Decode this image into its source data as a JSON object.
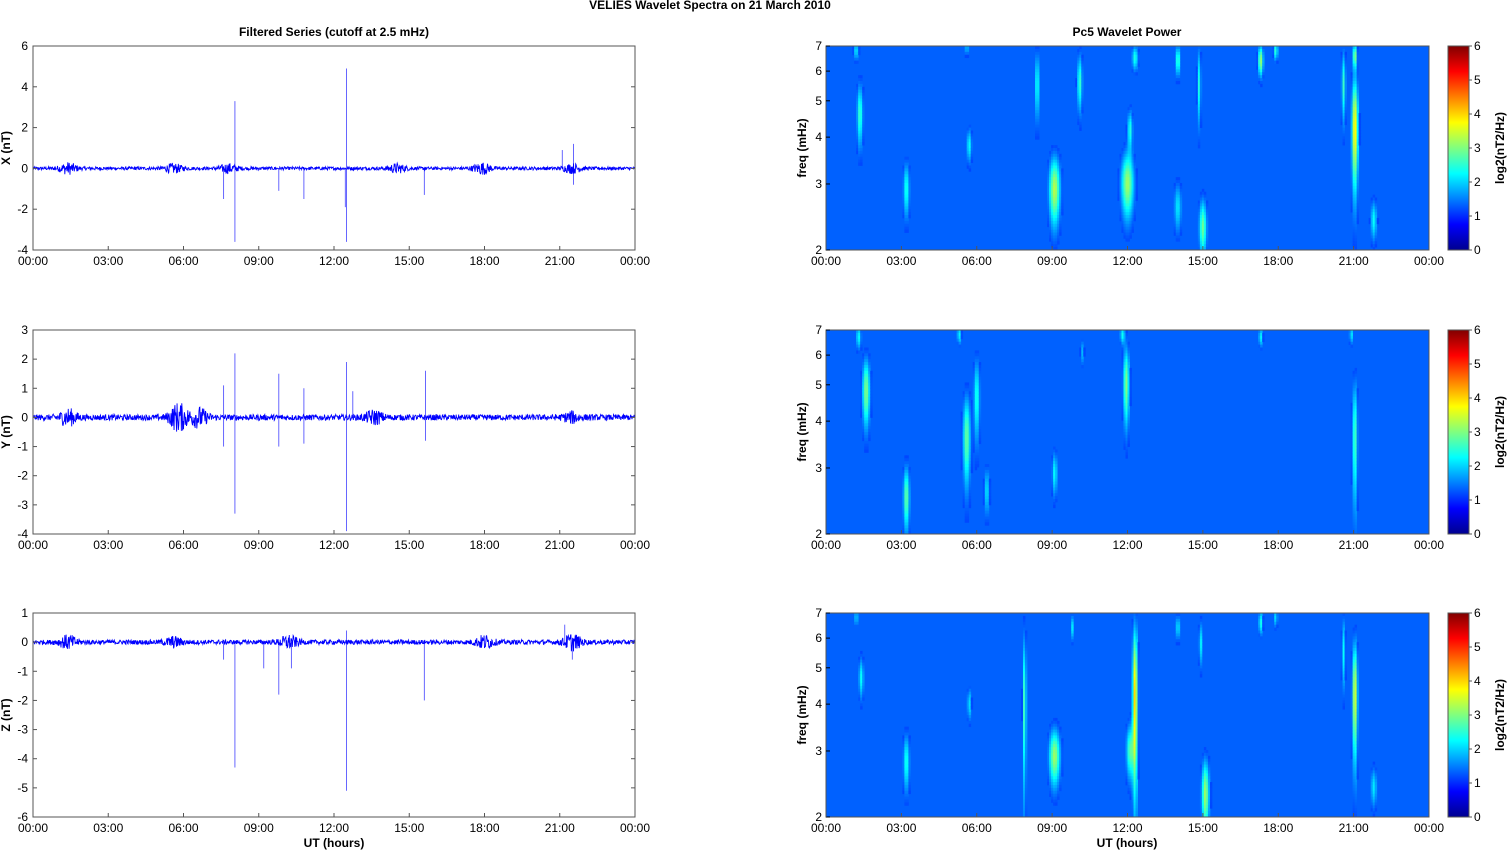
{
  "figure": {
    "title": "VELIES Wavelet Spectra on 21 March      2010",
    "left_column_title": "Filtered Series (cutoff at 2.5 mHz)",
    "right_column_title": "Pc5 Wavelet Power",
    "xlabel": "UT (hours)"
  },
  "chart_data": [
    {
      "type": "line",
      "id": "series-x",
      "ylabel": "X (nT)",
      "ylim": [
        -4,
        6
      ],
      "yticks": [
        "6",
        "4",
        "2",
        "0",
        "-2",
        "-4"
      ],
      "ytick_values": [
        6,
        4,
        2,
        0,
        -2,
        -4
      ],
      "xlim": [
        0,
        24
      ],
      "xtick_labels": [
        "00:00",
        "03:00",
        "06:00",
        "09:00",
        "12:00",
        "15:00",
        "18:00",
        "21:00",
        "00:00"
      ],
      "noise_amplitude": 0.08,
      "bursts": [
        [
          1.4,
          0.25
        ],
        [
          5.6,
          0.2
        ],
        [
          7.8,
          0.2
        ],
        [
          14.5,
          0.2
        ],
        [
          17.9,
          0.25
        ],
        [
          21.5,
          0.2
        ]
      ],
      "spikes": [
        [
          7.6,
          -1.5
        ],
        [
          8.05,
          3.3
        ],
        [
          8.05,
          -3.6
        ],
        [
          9.8,
          -1.1
        ],
        [
          10.8,
          -1.5
        ],
        [
          12.5,
          4.9
        ],
        [
          12.5,
          -3.6
        ],
        [
          12.45,
          -1.9
        ],
        [
          15.6,
          -1.3
        ],
        [
          21.1,
          0.9
        ],
        [
          21.55,
          1.2
        ],
        [
          21.55,
          -0.8
        ]
      ],
      "color": "#0000ff"
    },
    {
      "type": "line",
      "id": "series-y",
      "ylabel": "Y (nT)",
      "ylim": [
        -4,
        3
      ],
      "yticks": [
        "3",
        "2",
        "1",
        "0",
        "-1",
        "-2",
        "-3",
        "-4"
      ],
      "ytick_values": [
        3,
        2,
        1,
        0,
        -1,
        -2,
        -3,
        -4
      ],
      "xlim": [
        0,
        24
      ],
      "xtick_labels": [
        "00:00",
        "03:00",
        "06:00",
        "09:00",
        "12:00",
        "15:00",
        "18:00",
        "21:00",
        "00:00"
      ],
      "noise_amplitude": 0.1,
      "bursts": [
        [
          1.4,
          0.25
        ],
        [
          5.8,
          0.45
        ],
        [
          6.6,
          0.3
        ],
        [
          13.6,
          0.2
        ],
        [
          21.5,
          0.15
        ]
      ],
      "spikes": [
        [
          7.6,
          1.1
        ],
        [
          7.6,
          -1.0
        ],
        [
          8.05,
          2.2
        ],
        [
          8.05,
          -3.3
        ],
        [
          9.8,
          1.5
        ],
        [
          9.8,
          -1.0
        ],
        [
          10.8,
          1.0
        ],
        [
          10.8,
          -0.9
        ],
        [
          12.5,
          1.9
        ],
        [
          12.5,
          -3.9
        ],
        [
          12.75,
          0.9
        ],
        [
          15.65,
          1.6
        ],
        [
          15.65,
          -0.8
        ]
      ],
      "color": "#0000ff"
    },
    {
      "type": "line",
      "id": "series-z",
      "ylabel": "Z (nT)",
      "ylim": [
        -6,
        1
      ],
      "yticks": [
        "1",
        "0",
        "-1",
        "-2",
        "-3",
        "-4",
        "-5",
        "-6"
      ],
      "ytick_values": [
        1,
        0,
        -1,
        -2,
        -3,
        -4,
        -5,
        -6
      ],
      "xlim": [
        0,
        24
      ],
      "xtick_labels": [
        "00:00",
        "03:00",
        "06:00",
        "09:00",
        "12:00",
        "15:00",
        "18:00",
        "21:00",
        "00:00"
      ],
      "noise_amplitude": 0.08,
      "bursts": [
        [
          1.4,
          0.2
        ],
        [
          5.6,
          0.15
        ],
        [
          10.2,
          0.2
        ],
        [
          18.0,
          0.2
        ],
        [
          21.5,
          0.25
        ]
      ],
      "spikes": [
        [
          7.6,
          -0.6
        ],
        [
          8.05,
          -4.3
        ],
        [
          9.2,
          -0.9
        ],
        [
          9.8,
          -1.8
        ],
        [
          10.3,
          -0.9
        ],
        [
          12.5,
          -5.1
        ],
        [
          12.5,
          0.4
        ],
        [
          15.6,
          -2.0
        ],
        [
          21.2,
          0.6
        ],
        [
          21.5,
          -0.6
        ]
      ],
      "color": "#0000ff"
    },
    {
      "type": "heatmap",
      "id": "wavelet-x",
      "ylabel": "freq (mHz)",
      "y_scale": "log",
      "ylim": [
        2,
        7
      ],
      "yticks": [
        "7",
        "6",
        "5",
        "4",
        "3",
        "2"
      ],
      "ytick_values": [
        7,
        6,
        5,
        4,
        3,
        2
      ],
      "xlim": [
        0,
        24
      ],
      "xtick_labels": [
        "00:00",
        "03:00",
        "06:00",
        "09:00",
        "12:00",
        "15:00",
        "18:00",
        "21:00",
        "00:00"
      ],
      "colorbar_label": "log2(nT2/Hz)",
      "colorbar_ticks": [
        "6",
        "5",
        "4",
        "3",
        "2",
        "1",
        "0"
      ],
      "clim": [
        0,
        6
      ],
      "blobs": [
        {
          "t": 1.35,
          "f": 4.6,
          "power": 2.2,
          "dt": 0.12,
          "df": 0.9
        },
        {
          "t": 1.2,
          "f": 6.8,
          "power": 1.6,
          "dt": 0.1,
          "df": 0.4
        },
        {
          "t": 3.2,
          "f": 2.9,
          "power": 2.0,
          "dt": 0.12,
          "df": 0.5
        },
        {
          "t": 5.7,
          "f": 3.8,
          "power": 1.8,
          "dt": 0.1,
          "df": 0.4
        },
        {
          "t": 5.6,
          "f": 6.9,
          "power": 1.6,
          "dt": 0.06,
          "df": 0.3
        },
        {
          "t": 8.4,
          "f": 5.5,
          "power": 2.0,
          "dt": 0.08,
          "df": 1.2
        },
        {
          "t": 9.1,
          "f": 2.9,
          "power": 3.2,
          "dt": 0.22,
          "df": 0.6
        },
        {
          "t": 10.1,
          "f": 5.6,
          "power": 2.2,
          "dt": 0.1,
          "df": 1.0
        },
        {
          "t": 12.0,
          "f": 3.0,
          "power": 3.0,
          "dt": 0.25,
          "df": 0.6
        },
        {
          "t": 12.1,
          "f": 4.2,
          "power": 2.0,
          "dt": 0.1,
          "df": 0.5
        },
        {
          "t": 12.3,
          "f": 6.5,
          "power": 2.0,
          "dt": 0.12,
          "df": 0.5
        },
        {
          "t": 14.0,
          "f": 2.6,
          "power": 1.6,
          "dt": 0.15,
          "df": 0.4
        },
        {
          "t": 15.0,
          "f": 2.3,
          "power": 2.6,
          "dt": 0.15,
          "df": 0.4
        },
        {
          "t": 14.0,
          "f": 6.4,
          "power": 2.4,
          "dt": 0.08,
          "df": 0.6
        },
        {
          "t": 14.85,
          "f": 5.5,
          "power": 2.0,
          "dt": 0.07,
          "df": 1.3
        },
        {
          "t": 17.3,
          "f": 6.4,
          "power": 3.0,
          "dt": 0.1,
          "df": 0.6
        },
        {
          "t": 17.9,
          "f": 6.8,
          "power": 2.2,
          "dt": 0.08,
          "df": 0.4
        },
        {
          "t": 20.6,
          "f": 5.5,
          "power": 2.2,
          "dt": 0.08,
          "df": 1.2
        },
        {
          "t": 21.05,
          "f": 4.2,
          "power": 4.0,
          "dt": 0.12,
          "df": 1.4
        },
        {
          "t": 21.05,
          "f": 6.6,
          "power": 2.8,
          "dt": 0.08,
          "df": 0.5
        },
        {
          "t": 21.8,
          "f": 2.4,
          "power": 1.8,
          "dt": 0.12,
          "df": 0.3
        }
      ]
    },
    {
      "type": "heatmap",
      "id": "wavelet-y",
      "ylabel": "freq (mHz)",
      "y_scale": "log",
      "ylim": [
        2,
        7
      ],
      "yticks": [
        "7",
        "6",
        "5",
        "4",
        "3",
        "2"
      ],
      "ytick_values": [
        7,
        6,
        5,
        4,
        3,
        2
      ],
      "xlim": [
        0,
        24
      ],
      "xtick_labels": [
        "00:00",
        "03:00",
        "06:00",
        "09:00",
        "12:00",
        "15:00",
        "18:00",
        "21:00",
        "00:00"
      ],
      "colorbar_label": "log2(nT2/Hz)",
      "colorbar_ticks": [
        "6",
        "5",
        "4",
        "3",
        "2",
        "1",
        "0"
      ],
      "clim": [
        0,
        6
      ],
      "blobs": [
        {
          "t": 1.6,
          "f": 4.8,
          "power": 2.8,
          "dt": 0.15,
          "df": 1.0
        },
        {
          "t": 1.3,
          "f": 6.7,
          "power": 1.8,
          "dt": 0.1,
          "df": 0.5
        },
        {
          "t": 3.2,
          "f": 2.5,
          "power": 2.6,
          "dt": 0.12,
          "df": 0.5
        },
        {
          "t": 5.6,
          "f": 3.6,
          "power": 2.6,
          "dt": 0.15,
          "df": 1.0
        },
        {
          "t": 5.3,
          "f": 6.8,
          "power": 1.8,
          "dt": 0.08,
          "df": 0.4
        },
        {
          "t": 6.0,
          "f": 4.6,
          "power": 2.0,
          "dt": 0.12,
          "df": 1.2
        },
        {
          "t": 6.4,
          "f": 2.6,
          "power": 1.6,
          "dt": 0.1,
          "df": 0.4
        },
        {
          "t": 9.1,
          "f": 2.9,
          "power": 1.8,
          "dt": 0.1,
          "df": 0.4
        },
        {
          "t": 10.2,
          "f": 6.1,
          "power": 1.2,
          "dt": 0.07,
          "df": 0.5
        },
        {
          "t": 11.95,
          "f": 5.0,
          "power": 2.8,
          "dt": 0.12,
          "df": 1.2
        },
        {
          "t": 11.8,
          "f": 6.8,
          "power": 1.8,
          "dt": 0.1,
          "df": 0.4
        },
        {
          "t": 17.3,
          "f": 6.7,
          "power": 1.8,
          "dt": 0.08,
          "df": 0.4
        },
        {
          "t": 21.05,
          "f": 3.6,
          "power": 2.4,
          "dt": 0.1,
          "df": 1.4
        },
        {
          "t": 20.9,
          "f": 6.8,
          "power": 1.6,
          "dt": 0.07,
          "df": 0.4
        }
      ]
    },
    {
      "type": "heatmap",
      "id": "wavelet-z",
      "ylabel": "freq (mHz)",
      "y_scale": "log",
      "ylim": [
        2,
        7
      ],
      "yticks": [
        "7",
        "6",
        "5",
        "4",
        "3",
        "2"
      ],
      "ytick_values": [
        7,
        6,
        5,
        4,
        3,
        2
      ],
      "xlim": [
        0,
        24
      ],
      "xtick_labels": [
        "00:00",
        "03:00",
        "06:00",
        "09:00",
        "12:00",
        "15:00",
        "18:00",
        "21:00",
        "00:00"
      ],
      "colorbar_label": "log2(nT2/Hz)",
      "colorbar_ticks": [
        "6",
        "5",
        "4",
        "3",
        "2",
        "1",
        "0"
      ],
      "clim": [
        0,
        6
      ],
      "blobs": [
        {
          "t": 1.4,
          "f": 4.7,
          "power": 1.8,
          "dt": 0.1,
          "df": 0.6
        },
        {
          "t": 1.2,
          "f": 6.8,
          "power": 1.4,
          "dt": 0.08,
          "df": 0.4
        },
        {
          "t": 3.2,
          "f": 2.8,
          "power": 2.0,
          "dt": 0.12,
          "df": 0.5
        },
        {
          "t": 5.7,
          "f": 4.0,
          "power": 1.6,
          "dt": 0.08,
          "df": 0.4
        },
        {
          "t": 7.9,
          "f": 4.0,
          "power": 2.4,
          "dt": 0.07,
          "df": 2.0
        },
        {
          "t": 9.1,
          "f": 2.9,
          "power": 3.0,
          "dt": 0.22,
          "df": 0.5
        },
        {
          "t": 9.8,
          "f": 6.4,
          "power": 1.6,
          "dt": 0.06,
          "df": 0.5
        },
        {
          "t": 12.3,
          "f": 4.2,
          "power": 4.2,
          "dt": 0.1,
          "df": 2.0
        },
        {
          "t": 12.1,
          "f": 3.0,
          "power": 2.4,
          "dt": 0.15,
          "df": 0.5
        },
        {
          "t": 15.1,
          "f": 2.3,
          "power": 3.0,
          "dt": 0.15,
          "df": 0.5
        },
        {
          "t": 14.0,
          "f": 6.4,
          "power": 1.8,
          "dt": 0.07,
          "df": 0.5
        },
        {
          "t": 14.9,
          "f": 5.8,
          "power": 1.8,
          "dt": 0.06,
          "df": 0.8
        },
        {
          "t": 17.3,
          "f": 6.6,
          "power": 2.0,
          "dt": 0.08,
          "df": 0.5
        },
        {
          "t": 17.9,
          "f": 6.8,
          "power": 1.6,
          "dt": 0.07,
          "df": 0.4
        },
        {
          "t": 20.6,
          "f": 5.5,
          "power": 1.8,
          "dt": 0.07,
          "df": 1.2
        },
        {
          "t": 21.05,
          "f": 4.2,
          "power": 3.6,
          "dt": 0.1,
          "df": 1.5
        },
        {
          "t": 21.8,
          "f": 2.4,
          "power": 1.6,
          "dt": 0.12,
          "df": 0.3
        }
      ]
    }
  ]
}
